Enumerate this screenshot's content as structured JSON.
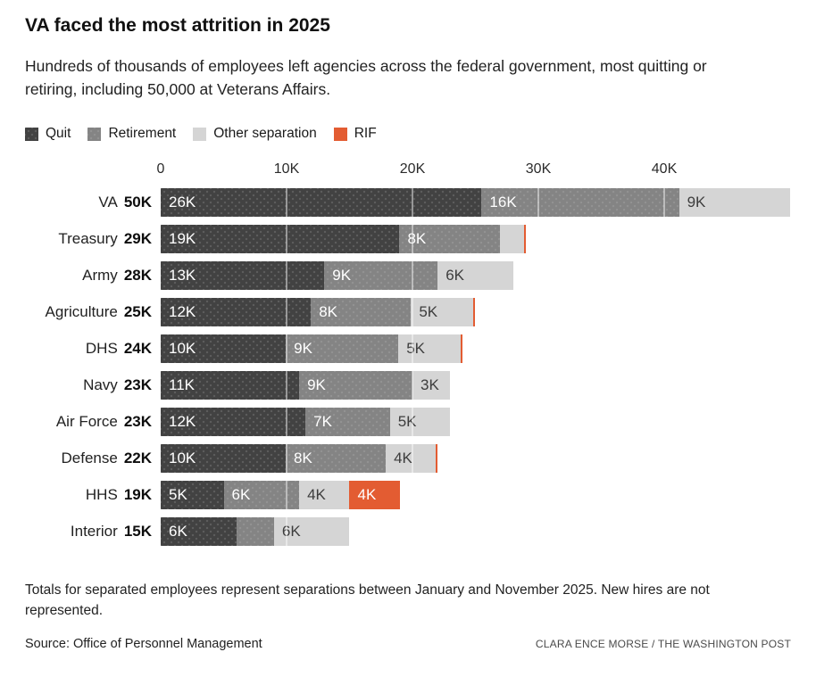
{
  "header": {
    "title": "VA faced the most attrition in 2025",
    "subtitle": "Hundreds of thousands of employees left agencies across the federal government, most quitting or retiring, including 50,000 at Veterans Affairs."
  },
  "legend": [
    {
      "key": "quit",
      "label": "Quit"
    },
    {
      "key": "retirement",
      "label": "Retirement"
    },
    {
      "key": "other",
      "label": "Other separation"
    },
    {
      "key": "rif",
      "label": "RIF"
    }
  ],
  "colors": {
    "quit": "#424242",
    "retirement": "#848484",
    "other": "#D5D5D5",
    "rif": "#E35C32",
    "grid": "rgba(255,255,255,0.45)"
  },
  "chart_data": {
    "type": "bar",
    "stacked": true,
    "orientation": "horizontal",
    "value_unit": "thousands of employees",
    "x_ticks": [
      {
        "value": 0,
        "label": "0"
      },
      {
        "value": 10,
        "label": "10K"
      },
      {
        "value": 20,
        "label": "20K"
      },
      {
        "value": 30,
        "label": "30K"
      },
      {
        "value": 40,
        "label": "40K"
      }
    ],
    "x_max": 50,
    "series": [
      "Quit",
      "Retirement",
      "Other separation",
      "RIF"
    ],
    "rows": [
      {
        "agency": "VA",
        "total": 50,
        "total_label": "50K",
        "segments": [
          {
            "series": "Quit",
            "key": "quit",
            "value": 26,
            "label": "26K"
          },
          {
            "series": "Retirement",
            "key": "retirement",
            "value": 16,
            "label": "16K"
          },
          {
            "series": "Other separation",
            "key": "other",
            "value": 9,
            "label": "9K"
          }
        ]
      },
      {
        "agency": "Treasury",
        "total": 29,
        "total_label": "29K",
        "segments": [
          {
            "series": "Quit",
            "key": "quit",
            "value": 19,
            "label": "19K"
          },
          {
            "series": "Retirement",
            "key": "retirement",
            "value": 8,
            "label": "8K"
          },
          {
            "series": "Other separation",
            "key": "other",
            "value": 1.9,
            "label": ""
          },
          {
            "series": "RIF",
            "key": "rif",
            "value": 0.15,
            "label": ""
          }
        ]
      },
      {
        "agency": "Army",
        "total": 28,
        "total_label": "28K",
        "segments": [
          {
            "series": "Quit",
            "key": "quit",
            "value": 13,
            "label": "13K"
          },
          {
            "series": "Retirement",
            "key": "retirement",
            "value": 9,
            "label": "9K"
          },
          {
            "series": "Other separation",
            "key": "other",
            "value": 6,
            "label": "6K"
          }
        ]
      },
      {
        "agency": "Agriculture",
        "total": 25,
        "total_label": "25K",
        "segments": [
          {
            "series": "Quit",
            "key": "quit",
            "value": 12,
            "label": "12K"
          },
          {
            "series": "Retirement",
            "key": "retirement",
            "value": 8,
            "label": "8K"
          },
          {
            "series": "Other separation",
            "key": "other",
            "value": 5,
            "label": "5K"
          },
          {
            "series": "RIF",
            "key": "rif",
            "value": 0.15,
            "label": ""
          }
        ]
      },
      {
        "agency": "DHS",
        "total": 24,
        "total_label": "24K",
        "segments": [
          {
            "series": "Quit",
            "key": "quit",
            "value": 10,
            "label": "10K"
          },
          {
            "series": "Retirement",
            "key": "retirement",
            "value": 9,
            "label": "9K"
          },
          {
            "series": "Other separation",
            "key": "other",
            "value": 5,
            "label": "5K"
          },
          {
            "series": "RIF",
            "key": "rif",
            "value": 0.15,
            "label": ""
          }
        ]
      },
      {
        "agency": "Navy",
        "total": 23,
        "total_label": "23K",
        "segments": [
          {
            "series": "Quit",
            "key": "quit",
            "value": 11,
            "label": "11K"
          },
          {
            "series": "Retirement",
            "key": "retirement",
            "value": 9,
            "label": "9K"
          },
          {
            "series": "Other separation",
            "key": "other",
            "value": 3,
            "label": "3K"
          }
        ]
      },
      {
        "agency": "Air Force",
        "total": 23,
        "total_label": "23K",
        "segments": [
          {
            "series": "Quit",
            "key": "quit",
            "value": 12,
            "label": "12K"
          },
          {
            "series": "Retirement",
            "key": "retirement",
            "value": 7,
            "label": "7K"
          },
          {
            "series": "Other separation",
            "key": "other",
            "value": 5,
            "label": "5K"
          }
        ]
      },
      {
        "agency": "Defense",
        "total": 22,
        "total_label": "22K",
        "segments": [
          {
            "series": "Quit",
            "key": "quit",
            "value": 10,
            "label": "10K"
          },
          {
            "series": "Retirement",
            "key": "retirement",
            "value": 8,
            "label": "8K"
          },
          {
            "series": "Other separation",
            "key": "other",
            "value": 4,
            "label": "4K"
          },
          {
            "series": "RIF",
            "key": "rif",
            "value": 0.15,
            "label": ""
          }
        ]
      },
      {
        "agency": "HHS",
        "total": 19,
        "total_label": "19K",
        "segments": [
          {
            "series": "Quit",
            "key": "quit",
            "value": 5,
            "label": "5K"
          },
          {
            "series": "Retirement",
            "key": "retirement",
            "value": 6,
            "label": "6K"
          },
          {
            "series": "Other separation",
            "key": "other",
            "value": 4,
            "label": "4K"
          },
          {
            "series": "RIF",
            "key": "rif",
            "value": 4,
            "label": "4K"
          }
        ]
      },
      {
        "agency": "Interior",
        "total": 15,
        "total_label": "15K",
        "segments": [
          {
            "series": "Quit",
            "key": "quit",
            "value": 6,
            "label": "6K"
          },
          {
            "series": "Retirement",
            "key": "retirement",
            "value": 3,
            "label": ""
          },
          {
            "series": "Other separation",
            "key": "other",
            "value": 6,
            "label": "6K"
          }
        ]
      }
    ]
  },
  "footer": {
    "note": "Totals for separated employees represent separations between January and November 2025. New hires are not represented.",
    "source": "Source: Office of Personnel Management",
    "credit": "CLARA ENCE MORSE / THE WASHINGTON POST"
  }
}
